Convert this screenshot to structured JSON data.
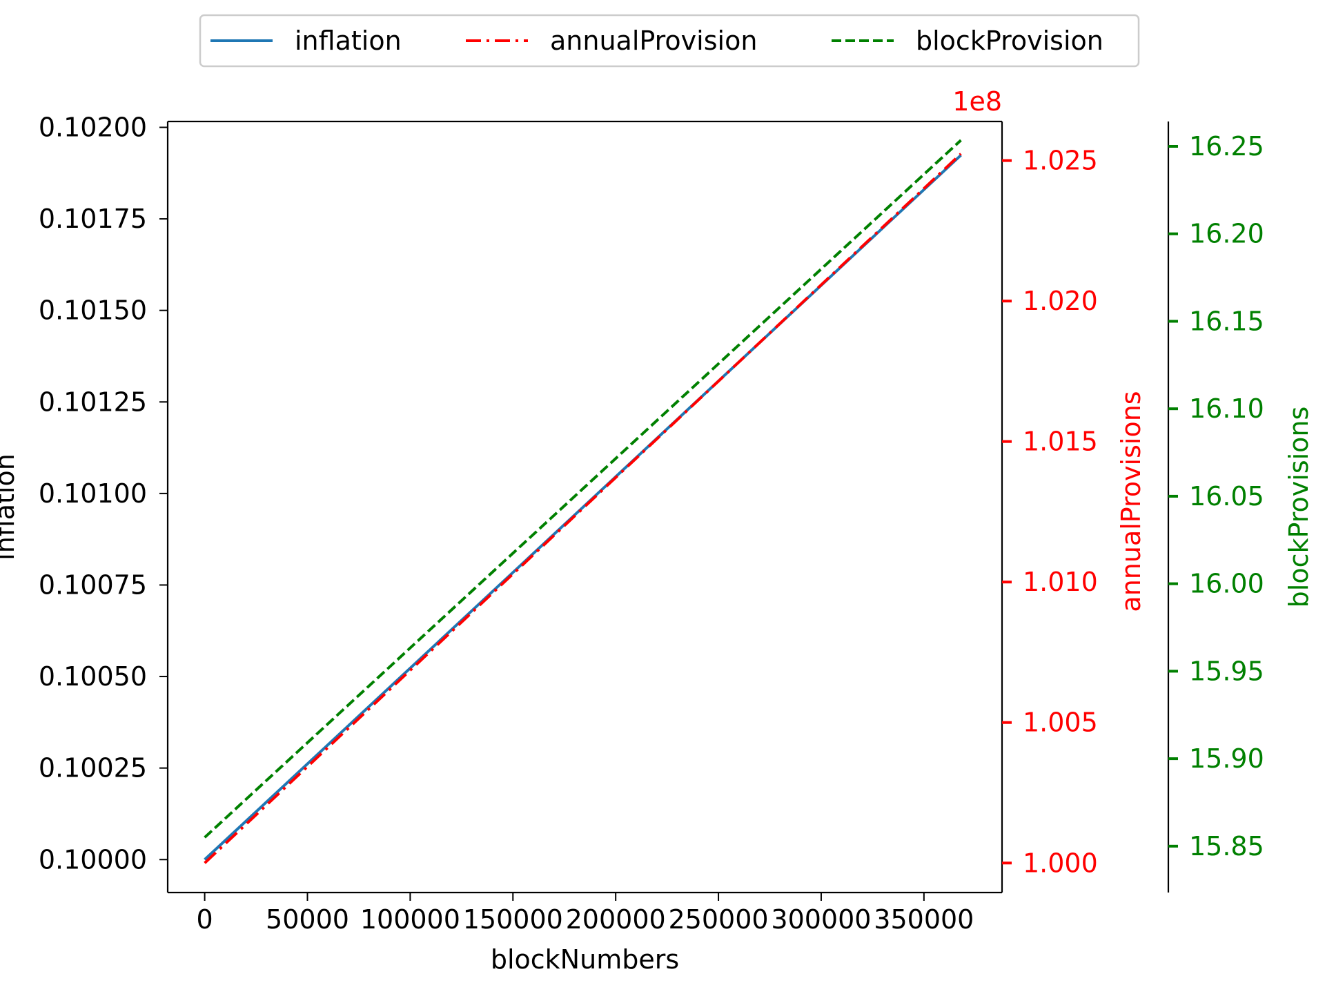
{
  "chart_data": {
    "type": "line",
    "xlabel": "blockNumbers",
    "xlim": [
      -18000,
      388000
    ],
    "x_ticks": [
      0,
      50000,
      100000,
      150000,
      200000,
      250000,
      300000,
      350000
    ],
    "x_tick_labels": [
      "0",
      "50000",
      "100000",
      "150000",
      "200000",
      "250000",
      "300000",
      "350000"
    ],
    "x": [
      0,
      368000
    ],
    "axes": {
      "left": {
        "label": "inflation",
        "color": "#000000",
        "ylim": [
          0.09991,
          0.102016
        ],
        "ticks": [
          0.1,
          0.10025,
          0.1005,
          0.10075,
          0.101,
          0.10125,
          0.1015,
          0.10175,
          0.102
        ],
        "tick_labels": [
          "0.10000",
          "0.10025",
          "0.10050",
          "0.10075",
          "0.10100",
          "0.10125",
          "0.10150",
          "0.10175",
          "0.10200"
        ]
      },
      "right1": {
        "label": "annualProvisions",
        "color": "#ff0000",
        "offset_text": "1e8",
        "ylim": [
          0.99895,
          1.02639
        ],
        "ticks": [
          1.0,
          1.005,
          1.01,
          1.015,
          1.02,
          1.025
        ],
        "tick_labels": [
          "1.000",
          "1.005",
          "1.010",
          "1.015",
          "1.020",
          "1.025"
        ]
      },
      "right2": {
        "label": "blockProvisions",
        "color": "#008000",
        "ylim": [
          15.8235,
          16.2642
        ],
        "ticks": [
          15.85,
          15.9,
          15.95,
          16.0,
          16.05,
          16.1,
          16.15,
          16.2,
          16.25
        ],
        "tick_labels": [
          "15.85",
          "15.90",
          "15.95",
          "16.00",
          "16.05",
          "16.10",
          "16.15",
          "16.20",
          "16.25"
        ]
      }
    },
    "series": [
      {
        "name": "inflation",
        "axis": "left",
        "color": "#1f77b4",
        "style": "solid",
        "values": [
          0.1,
          0.101924
        ]
      },
      {
        "name": "annualProvision",
        "axis": "right1",
        "color": "#ff0000",
        "style": "dashdot",
        "values": [
          1.0,
          1.02524
        ]
      },
      {
        "name": "blockProvision",
        "axis": "right2",
        "color": "#008000",
        "style": "dashed",
        "values": [
          15.855,
          16.2535
        ]
      }
    ],
    "legend": {
      "placement": "top-center",
      "entries": [
        "inflation",
        "annualProvision",
        "blockProvision"
      ]
    },
    "grid": false
  }
}
